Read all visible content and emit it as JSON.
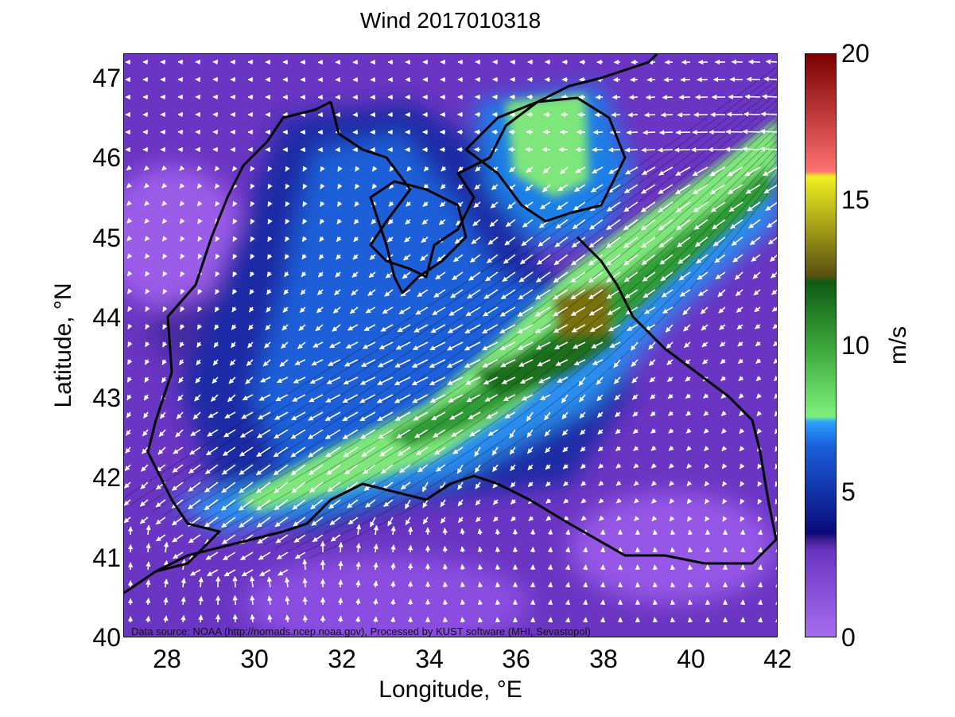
{
  "title": "Wind 2017010318",
  "xlabel": "Longitude, °E",
  "ylabel": "Latitude, °N",
  "colorbar_label": "m/s",
  "source_note": "Data source: NOAA (http://nomads.ncep.noaa.gov), Processed by KUST software (MHI, Sevastopol)",
  "map": {
    "lon_range": [
      27,
      42
    ],
    "lat_range": [
      40,
      47.3
    ],
    "x_ticks": [
      "28",
      "30",
      "32",
      "34",
      "36",
      "38",
      "40",
      "42"
    ],
    "y_ticks": [
      "40",
      "41",
      "42",
      "43",
      "44",
      "45",
      "46",
      "47"
    ],
    "colorbar_ticks": [
      "0",
      "5",
      "10",
      "15",
      "20"
    ],
    "colorbar_range": [
      0,
      20
    ],
    "colors": {
      "calm": "#9b58e6",
      "low": "#5a2aa8",
      "mid_dark": "#1a1f9a",
      "mid": "#1d4fd0",
      "blue_high": "#1f8ff0",
      "light_green": "#7ee67a",
      "green": "#2e9a33",
      "dark_green": "#1b6e1f",
      "olive": "#7a6f10",
      "vectors": "#ffffff",
      "coast": "#000000"
    }
  }
}
